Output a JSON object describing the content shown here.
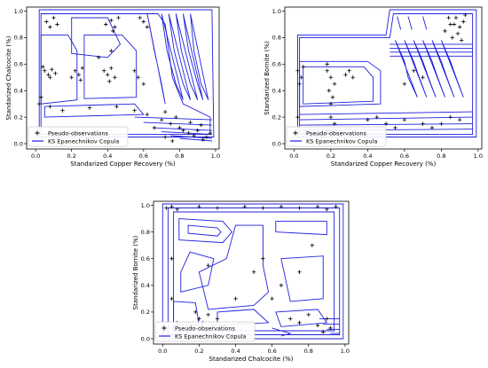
{
  "chart_data": [
    {
      "type": "scatter",
      "xlabel": "Standarized Copper Recovery (%)",
      "ylabel": "Standarized Chalcocite (%)",
      "xlim": [
        -0.05,
        1.02
      ],
      "ylim": [
        -0.04,
        1.03
      ],
      "xticks": [
        "0.0",
        "0.2",
        "0.4",
        "0.6",
        "0.8",
        "1.0"
      ],
      "yticks": [
        "0.0",
        "0.2",
        "0.4",
        "0.6",
        "0.8",
        "1.0"
      ],
      "legend_position": "lower-left",
      "series": [
        {
          "name": "Pseudo-observations",
          "marker": "+",
          "color": "#000000",
          "points": [
            [
              0.06,
              0.92
            ],
            [
              0.08,
              0.88
            ],
            [
              0.1,
              0.95
            ],
            [
              0.12,
              0.9
            ],
            [
              0.05,
              0.55
            ],
            [
              0.07,
              0.52
            ],
            [
              0.09,
              0.56
            ],
            [
              0.11,
              0.53
            ],
            [
              0.04,
              0.58
            ],
            [
              0.08,
              0.5
            ],
            [
              0.22,
              0.55
            ],
            [
              0.24,
              0.52
            ],
            [
              0.26,
              0.57
            ],
            [
              0.2,
              0.5
            ],
            [
              0.25,
              0.48
            ],
            [
              0.38,
              0.55
            ],
            [
              0.4,
              0.52
            ],
            [
              0.42,
              0.57
            ],
            [
              0.44,
              0.5
            ],
            [
              0.41,
              0.47
            ],
            [
              0.39,
              0.9
            ],
            [
              0.42,
              0.93
            ],
            [
              0.44,
              0.88
            ],
            [
              0.46,
              0.95
            ],
            [
              0.43,
              0.85
            ],
            [
              0.6,
              0.92
            ],
            [
              0.62,
              0.88
            ],
            [
              0.58,
              0.95
            ],
            [
              0.55,
              0.55
            ],
            [
              0.57,
              0.5
            ],
            [
              0.6,
              0.45
            ],
            [
              0.08,
              0.28
            ],
            [
              0.15,
              0.25
            ],
            [
              0.3,
              0.27
            ],
            [
              0.45,
              0.28
            ],
            [
              0.55,
              0.25
            ],
            [
              0.62,
              0.22
            ],
            [
              0.7,
              0.18
            ],
            [
              0.75,
              0.15
            ],
            [
              0.8,
              0.12
            ],
            [
              0.82,
              0.1
            ],
            [
              0.85,
              0.08
            ],
            [
              0.88,
              0.06
            ],
            [
              0.9,
              0.1
            ],
            [
              0.92,
              0.14
            ],
            [
              0.95,
              0.05
            ],
            [
              0.97,
              0.08
            ],
            [
              0.93,
              0.03
            ],
            [
              0.86,
              0.16
            ],
            [
              0.78,
              0.2
            ],
            [
              0.72,
              0.24
            ],
            [
              0.66,
              0.12
            ],
            [
              0.02,
              0.3
            ],
            [
              0.03,
              0.35
            ],
            [
              0.72,
              0.05
            ],
            [
              0.76,
              0.02
            ],
            [
              0.42,
              0.7
            ],
            [
              0.35,
              0.65
            ]
          ]
        },
        {
          "name": "KS Epanechnikov Copula",
          "color": "#1f1fe0"
        }
      ]
    },
    {
      "type": "scatter",
      "xlabel": "Standarized Copper Recovery (%)",
      "ylabel": "Standarized Bornite (%)",
      "xlim": [
        -0.05,
        1.02
      ],
      "ylim": [
        -0.04,
        1.03
      ],
      "xticks": [
        "0.0",
        "0.2",
        "0.4",
        "0.6",
        "0.8",
        "1.0"
      ],
      "yticks": [
        "0.0",
        "0.2",
        "0.4",
        "0.6",
        "0.8",
        "1.0"
      ],
      "legend_position": "lower-left",
      "series": [
        {
          "name": "Pseudo-observations",
          "marker": "+",
          "color": "#000000",
          "points": [
            [
              0.02,
              0.55
            ],
            [
              0.04,
              0.5
            ],
            [
              0.03,
              0.45
            ],
            [
              0.05,
              0.58
            ],
            [
              0.18,
              0.55
            ],
            [
              0.2,
              0.5
            ],
            [
              0.22,
              0.45
            ],
            [
              0.19,
              0.4
            ],
            [
              0.21,
              0.35
            ],
            [
              0.2,
              0.3
            ],
            [
              0.18,
              0.6
            ],
            [
              0.3,
              0.55
            ],
            [
              0.28,
              0.52
            ],
            [
              0.32,
              0.5
            ],
            [
              0.2,
              0.2
            ],
            [
              0.22,
              0.15
            ],
            [
              0.18,
              0.1
            ],
            [
              0.4,
              0.18
            ],
            [
              0.45,
              0.2
            ],
            [
              0.5,
              0.15
            ],
            [
              0.55,
              0.12
            ],
            [
              0.6,
              0.18
            ],
            [
              0.7,
              0.15
            ],
            [
              0.75,
              0.12
            ],
            [
              0.8,
              0.15
            ],
            [
              0.85,
              0.2
            ],
            [
              0.9,
              0.18
            ],
            [
              0.82,
              0.85
            ],
            [
              0.85,
              0.9
            ],
            [
              0.88,
              0.95
            ],
            [
              0.9,
              0.88
            ],
            [
              0.92,
              0.92
            ],
            [
              0.86,
              0.8
            ],
            [
              0.89,
              0.83
            ],
            [
              0.91,
              0.78
            ],
            [
              0.84,
              0.95
            ],
            [
              0.93,
              0.97
            ],
            [
              0.87,
              0.9
            ],
            [
              0.65,
              0.55
            ],
            [
              0.7,
              0.5
            ],
            [
              0.6,
              0.45
            ],
            [
              0.1,
              0.02
            ],
            [
              0.15,
              0.05
            ],
            [
              0.02,
              0.2
            ]
          ]
        },
        {
          "name": "KS Epanechnikov Copula",
          "color": "#1f1fe0"
        }
      ]
    },
    {
      "type": "scatter",
      "xlabel": "Standarized Chalcocite (%)",
      "ylabel": "Standarized Bornite (%)",
      "xlim": [
        -0.05,
        1.02
      ],
      "ylim": [
        -0.04,
        1.03
      ],
      "xticks": [
        "0.0",
        "0.2",
        "0.4",
        "0.6",
        "0.8",
        "1.0"
      ],
      "yticks": [
        "0.0",
        "0.2",
        "0.4",
        "0.6",
        "0.8",
        "1.0"
      ],
      "legend_position": "lower-left",
      "series": [
        {
          "name": "Pseudo-observations",
          "marker": "+",
          "color": "#000000",
          "points": [
            [
              0.02,
              0.98
            ],
            [
              0.05,
              0.99
            ],
            [
              0.08,
              0.97
            ],
            [
              0.2,
              0.99
            ],
            [
              0.3,
              0.98
            ],
            [
              0.45,
              0.99
            ],
            [
              0.55,
              0.98
            ],
            [
              0.65,
              0.99
            ],
            [
              0.75,
              0.98
            ],
            [
              0.85,
              0.99
            ],
            [
              0.9,
              0.97
            ],
            [
              0.95,
              0.99
            ],
            [
              0.2,
              0.15
            ],
            [
              0.22,
              0.12
            ],
            [
              0.25,
              0.18
            ],
            [
              0.18,
              0.2
            ],
            [
              0.28,
              0.1
            ],
            [
              0.3,
              0.15
            ],
            [
              0.7,
              0.15
            ],
            [
              0.75,
              0.12
            ],
            [
              0.8,
              0.18
            ],
            [
              0.85,
              0.1
            ],
            [
              0.9,
              0.15
            ],
            [
              0.88,
              0.05
            ],
            [
              0.92,
              0.08
            ],
            [
              0.6,
              0.3
            ],
            [
              0.65,
              0.4
            ],
            [
              0.55,
              0.6
            ],
            [
              0.5,
              0.5
            ],
            [
              0.75,
              0.5
            ],
            [
              0.82,
              0.7
            ],
            [
              0.25,
              0.55
            ],
            [
              0.05,
              0.3
            ],
            [
              0.05,
              0.6
            ],
            [
              0.08,
              0.12
            ],
            [
              0.4,
              0.3
            ]
          ]
        },
        {
          "name": "KS Epanechnikov Copula",
          "color": "#1f1fe0"
        }
      ]
    }
  ]
}
